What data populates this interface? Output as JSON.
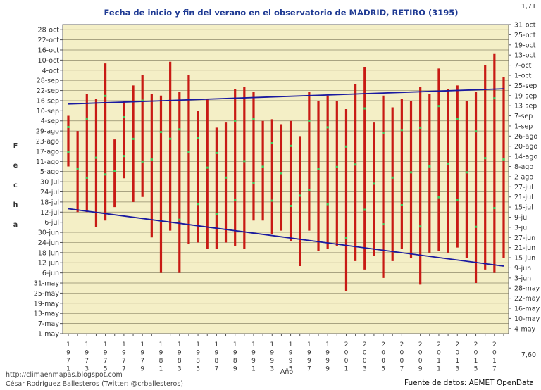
{
  "chart_data": {
    "type": "range-bar",
    "title": "Fecha de inicio y fin del verano en el observatorio de MADRID, RETIRO (3195)",
    "xlabel": "Año",
    "ylabel": "Fecha",
    "top_right_value": "1,71",
    "bottom_right_value": "7,60",
    "y_ticks_left": [
      "1-may",
      "7-may",
      "13-may",
      "19-may",
      "25-may",
      "31-may",
      "6-jun",
      "12-jun",
      "18-jun",
      "24-jun",
      "30-jun",
      "6-jul",
      "12-jul",
      "18-jul",
      "24-jul",
      "30-jul",
      "5-ago",
      "11-ago",
      "17-ago",
      "23-ago",
      "29-ago",
      "4-sep",
      "10-sep",
      "16-sep",
      "22-sep",
      "28-sep",
      "4-oct",
      "10-oct",
      "16-oct",
      "22-oct",
      "28-oct"
    ],
    "y_ticks_right": [
      "4-may",
      "10-may",
      "16-may",
      "22-may",
      "28-may",
      "3-jun",
      "9-jun",
      "15-jun",
      "21-jun",
      "27-jun",
      "3-jul",
      "9-jul",
      "15-jul",
      "21-jul",
      "27-jul",
      "2-ago",
      "8-ago",
      "14-ago",
      "20-ago",
      "26-ago",
      "1-sep",
      "7-sep",
      "13-sep",
      "19-sep",
      "25-sep",
      "1-oct",
      "7-oct",
      "13-oct",
      "19-oct",
      "25-oct",
      "31-oct"
    ],
    "x_tick_labels": [
      "1971",
      "1973",
      "1975",
      "1977",
      "1979",
      "1981",
      "1983",
      "1985",
      "1987",
      "1989",
      "1991",
      "1993",
      "1995",
      "1997",
      "1999",
      "2001",
      "2003",
      "2005",
      "2007",
      "2009",
      "2011",
      "2013",
      "2015",
      "2017"
    ],
    "years": [
      1971,
      1972,
      1973,
      1974,
      1975,
      1976,
      1977,
      1978,
      1979,
      1980,
      1981,
      1982,
      1983,
      1984,
      1985,
      1986,
      1987,
      1988,
      1989,
      1990,
      1991,
      1992,
      1993,
      1994,
      1995,
      1996,
      1997,
      1998,
      1999,
      2000,
      2001,
      2002,
      2003,
      2004,
      2005,
      2006,
      2007,
      2008,
      2009,
      2010,
      2011,
      2012,
      2013,
      2014,
      2015,
      2016,
      2017,
      2018
    ],
    "start_dates": [
      "8-ago",
      "12-jul",
      "12-jul",
      "3-jul",
      "7-jul",
      "15-jul",
      "1-ago",
      "18-jul",
      "21-jul",
      "27-jun",
      "6-jun",
      "1-jul",
      "6-jun",
      "23-jun",
      "24-jun",
      "20-jun",
      "20-jun",
      "24-jun",
      "22-jun",
      "20-jun",
      "7-jul",
      "7-jul",
      "29-jun",
      "1-jul",
      "25-jun",
      "10-jun",
      "1-jul",
      "19-jun",
      "20-jun",
      "22-jun",
      "26-may",
      "13-jun",
      "8-jun",
      "16-jun",
      "3-jun",
      "13-jun",
      "20-jun",
      "15-jun",
      "30-may",
      "18-jun",
      "19-jun",
      "18-jun",
      "21-jun",
      "15-jun",
      "31-may",
      "8-jun",
      "6-jun",
      "15-jun"
    ],
    "end_dates": [
      "7-sep",
      "29-ago",
      "20-sep",
      "17-sep",
      "8-oct",
      "24-ago",
      "16-sep",
      "25-sep",
      "1-oct",
      "20-sep",
      "19-sep",
      "9-oct",
      "21-sep",
      "1-oct",
      "10-sep",
      "17-sep",
      "31-ago",
      "3-sep",
      "23-sep",
      "24-sep",
      "21-sep",
      "4-sep",
      "5-sep",
      "2-sep",
      "4-sep",
      "26-ago",
      "21-sep",
      "16-sep",
      "19-sep",
      "16-sep",
      "11-sep",
      "26-sep",
      "6-oct",
      "3-sep",
      "19-sep",
      "12-sep",
      "17-sep",
      "16-sep",
      "24-sep",
      "20-sep",
      "5-oct",
      "23-sep",
      "25-sep",
      "16-sep",
      "21-sep",
      "7-oct",
      "14-oct",
      "30-sep"
    ],
    "trend_start": {
      "from": "14-jul",
      "to": "10-jun"
    },
    "trend_end": {
      "from": "14-sep",
      "to": "23-sep"
    },
    "grid": true,
    "colors": {
      "background": "#f4efc6",
      "grid": "#8f8a6a",
      "bars": "#c81a14",
      "highlight": "#3fcc5a",
      "trend": "#1a1aa0",
      "border": "#666666"
    }
  },
  "credits": {
    "line1": "http://climaenmapas.blogspot.com",
    "line2": "César Rodríguez Ballesteros (Twitter: @crballesteros)"
  },
  "source": "Fuente de datos: AEMET OpenData"
}
